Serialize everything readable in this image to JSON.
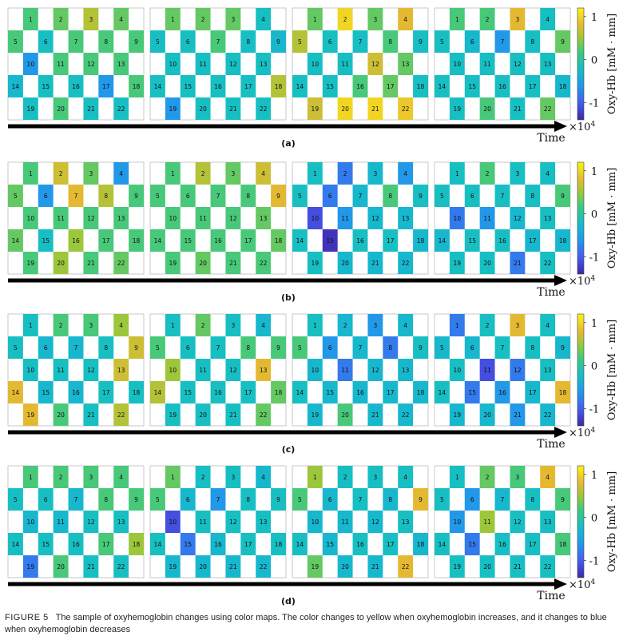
{
  "channels": [
    "1",
    "2",
    "3",
    "4",
    "5",
    "6",
    "7",
    "8",
    "9",
    "10",
    "11",
    "12",
    "13",
    "14",
    "15",
    "16",
    "17",
    "18",
    "19",
    "20",
    "21",
    "22"
  ],
  "time_label": "Time",
  "colorbar": {
    "label": "Oxy-Hb [mM · mm]",
    "ticks": [
      "1",
      "0",
      "-1"
    ],
    "multiplier": "×10",
    "exponent": "4"
  },
  "colormap_range": [
    -1.4,
    1.2
  ],
  "caption": {
    "label": "FIGURE 5",
    "text": "The sample of oxyhemoglobin changes using color maps. The color changes to yellow when oxyhemoglobin increases, and it changes to blue when oxyhemoglobin decreases"
  },
  "rows": [
    {
      "label": "(a)",
      "maps": [
        [
          0.2,
          0.3,
          0.6,
          0.3,
          0.2,
          -0.2,
          0.2,
          0.2,
          0.2,
          -0.6,
          0.2,
          0.2,
          0.2,
          -0.3,
          -0.2,
          -0.2,
          -0.6,
          0.2,
          -0.2,
          0.2,
          -0.2,
          -0.2
        ],
        [
          0.3,
          0.3,
          0.3,
          -0.2,
          -0.2,
          -0.2,
          0.2,
          -0.2,
          -0.3,
          -0.2,
          -0.2,
          -0.2,
          -0.2,
          -0.2,
          -0.2,
          -0.2,
          -0.2,
          0.6,
          -0.6,
          -0.2,
          -0.2,
          -0.2
        ],
        [
          0.3,
          1.0,
          0.3,
          0.8,
          0.6,
          -0.2,
          -0.2,
          0.2,
          -0.2,
          -0.2,
          -0.2,
          0.7,
          0.3,
          -0.2,
          -0.2,
          0.2,
          0.3,
          -0.2,
          0.7,
          1.0,
          1.0,
          0.9
        ],
        [
          0.2,
          0.2,
          0.8,
          -0.2,
          -0.2,
          -0.3,
          -0.6,
          -0.2,
          0.3,
          -0.2,
          -0.2,
          -0.2,
          -0.2,
          -0.2,
          -0.2,
          -0.2,
          -0.2,
          -0.3,
          -0.2,
          0.2,
          -0.2,
          0.3
        ]
      ]
    },
    {
      "label": "(b)",
      "maps": [
        [
          0.2,
          0.7,
          0.3,
          -0.6,
          0.3,
          -0.6,
          0.8,
          0.6,
          0.2,
          0.2,
          0.2,
          0.2,
          0.2,
          0.3,
          -0.2,
          0.5,
          0.2,
          0.2,
          0.2,
          0.5,
          0.2,
          0.3
        ],
        [
          0.2,
          0.6,
          0.3,
          0.7,
          0.2,
          0.2,
          0.2,
          0.2,
          0.8,
          0.2,
          0.2,
          0.2,
          0.3,
          0.2,
          0.2,
          0.2,
          0.2,
          0.3,
          0.2,
          0.3,
          0.2,
          0.2
        ],
        [
          -0.2,
          -0.8,
          -0.3,
          -0.6,
          -0.2,
          -0.8,
          -0.3,
          0.2,
          -0.2,
          -1.1,
          -0.6,
          -0.3,
          -0.3,
          -0.2,
          -1.3,
          -0.2,
          -0.2,
          -0.3,
          -0.2,
          -0.3,
          -0.3,
          -0.3
        ],
        [
          -0.2,
          0.2,
          -0.2,
          -0.2,
          -0.2,
          -0.2,
          -0.2,
          -0.2,
          0.2,
          -0.8,
          -0.6,
          -0.3,
          -0.2,
          -0.3,
          -0.2,
          -0.2,
          -0.3,
          -0.3,
          -0.2,
          -0.2,
          -0.8,
          -0.2
        ]
      ]
    },
    {
      "label": "(c)",
      "maps": [
        [
          -0.2,
          0.2,
          0.2,
          0.5,
          -0.2,
          -0.3,
          -0.3,
          -0.2,
          0.7,
          -0.2,
          -0.2,
          -0.2,
          0.7,
          0.8,
          -0.3,
          -0.3,
          -0.2,
          -0.2,
          0.8,
          0.2,
          -0.2,
          0.6
        ],
        [
          -0.2,
          0.3,
          -0.2,
          -0.3,
          0.2,
          -0.2,
          -0.2,
          0.2,
          0.2,
          0.5,
          -0.2,
          -0.2,
          0.8,
          0.6,
          -0.2,
          -0.2,
          -0.2,
          0.3,
          -0.2,
          -0.2,
          -0.2,
          0.3
        ],
        [
          -0.2,
          -0.3,
          -0.6,
          -0.3,
          0.2,
          -0.6,
          -0.3,
          -0.8,
          -0.2,
          -0.3,
          -0.8,
          -0.3,
          -0.3,
          -0.2,
          -0.3,
          -0.3,
          -0.3,
          -0.3,
          -0.3,
          0.2,
          -0.3,
          -0.3
        ],
        [
          -0.8,
          -0.2,
          0.8,
          -0.2,
          -0.3,
          -0.3,
          -0.2,
          -0.2,
          -0.3,
          -0.2,
          -1.1,
          -0.8,
          -0.2,
          -0.2,
          -0.8,
          -0.6,
          -0.3,
          0.8,
          -0.3,
          -0.3,
          -0.6,
          -0.3
        ]
      ]
    },
    {
      "label": "(d)",
      "maps": [
        [
          0.2,
          0.2,
          0.2,
          0.2,
          -0.2,
          -0.2,
          -0.3,
          0.2,
          0.2,
          -0.3,
          -0.3,
          -0.2,
          -0.2,
          -0.2,
          -0.2,
          -0.2,
          0.2,
          0.5,
          -0.8,
          0.2,
          -0.2,
          -0.2
        ],
        [
          0.3,
          -0.2,
          -0.2,
          -0.3,
          0.2,
          -0.3,
          -0.6,
          -0.2,
          -0.2,
          -1.1,
          -0.2,
          -0.2,
          -0.2,
          -0.2,
          -0.8,
          -0.3,
          -0.2,
          -0.2,
          -0.3,
          -0.3,
          -0.3,
          -0.3
        ],
        [
          0.5,
          -0.2,
          -0.2,
          -0.2,
          0.2,
          -0.3,
          -0.2,
          -0.3,
          0.8,
          -0.3,
          -0.3,
          -0.3,
          -0.2,
          -0.2,
          -0.3,
          -0.2,
          -0.2,
          -0.3,
          0.3,
          -0.3,
          -0.3,
          0.8
        ],
        [
          -0.2,
          0.3,
          0.2,
          0.8,
          -0.2,
          -0.6,
          -0.3,
          -0.2,
          0.2,
          -0.6,
          0.5,
          -0.2,
          -0.2,
          -0.2,
          -0.8,
          -0.2,
          -0.2,
          0.2,
          -0.2,
          -0.2,
          -0.2,
          -0.2
        ]
      ]
    }
  ]
}
